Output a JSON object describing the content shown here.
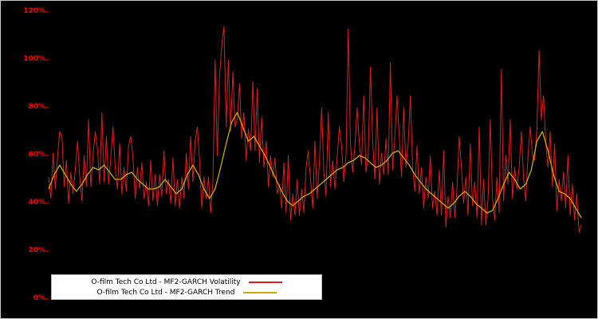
{
  "chart_data": {
    "type": "line",
    "title": "",
    "xlabel": "",
    "ylabel": "",
    "ylim": [
      0,
      120
    ],
    "grid": false,
    "legend_position": "bottom-left",
    "yticks": [
      0,
      20,
      40,
      60,
      80,
      100,
      120
    ],
    "ytick_labels": [
      "0%",
      "20%",
      "40%",
      "60%",
      "80%",
      "100%",
      "120%"
    ],
    "axis_label_color": "#ff0000",
    "background_color": "#000000",
    "series": [
      {
        "name": "O-film Tech Co Ltd - MF2-GARCH Volatility",
        "color": "#dd1c1a",
        "stroke_width": 1,
        "values": [
          51,
          42,
          61,
          46,
          59,
          70,
          68,
          47,
          58,
          40,
          53,
          44,
          54,
          66,
          51,
          41,
          60,
          47,
          75,
          47,
          60,
          70,
          63,
          48,
          78,
          49,
          68,
          48,
          59,
          72,
          55,
          46,
          65,
          44,
          55,
          45,
          64,
          68,
          59,
          42,
          55,
          46,
          57,
          42,
          49,
          39,
          58,
          41,
          52,
          39,
          52,
          43,
          62,
          44,
          50,
          40,
          59,
          39,
          50,
          38,
          51,
          42,
          61,
          46,
          68,
          49,
          66,
          72,
          58,
          38,
          51,
          42,
          51,
          36,
          49,
          100,
          60,
          93,
          106,
          114,
          72,
          100,
          70,
          95,
          72,
          75,
          90,
          67,
          78,
          58,
          71,
          62,
          91,
          62,
          88,
          57,
          76,
          55,
          66,
          47,
          60,
          51,
          59,
          44,
          48,
          38,
          57,
          36,
          60,
          33,
          44,
          35,
          50,
          35,
          46,
          36,
          55,
          62,
          50,
          38,
          66,
          42,
          57,
          80,
          53,
          43,
          78,
          47,
          58,
          46,
          59,
          72,
          64,
          49,
          60,
          113,
          65,
          53,
          64,
          80,
          65,
          56,
          85,
          53,
          60,
          97,
          66,
          50,
          80,
          48,
          61,
          52,
          67,
          52,
          99,
          54,
          68,
          85,
          68,
          51,
          80,
          55,
          65,
          85,
          55,
          45,
          64,
          44,
          55,
          38,
          51,
          42,
          60,
          38,
          45,
          35,
          54,
          35,
          62,
          30,
          43,
          34,
          49,
          34,
          46,
          68,
          55,
          40,
          51,
          35,
          65,
          39,
          49,
          34,
          72,
          31,
          50,
          31,
          42,
          75,
          42,
          33,
          51,
          36,
          96,
          41,
          60,
          48,
          75,
          42,
          55,
          46,
          55,
          70,
          51,
          41,
          60,
          72,
          60,
          58,
          71,
          104,
          75,
          85,
          65,
          55,
          70,
          47,
          65,
          37,
          50,
          41,
          53,
          38,
          60,
          35,
          48,
          33,
          44,
          28,
          31
        ]
      },
      {
        "name": "O-film Tech Co Ltd - MF2-GARCH Trend",
        "color": "#ccaa00",
        "stroke_width": 1.3,
        "values": [
          46,
          52,
          56,
          52,
          48,
          45,
          48,
          52,
          55,
          54,
          56,
          53,
          50,
          50,
          52,
          53,
          50,
          48,
          46,
          46,
          47,
          50,
          47,
          44,
          46,
          52,
          56,
          52,
          46,
          42,
          46,
          55,
          65,
          74,
          78,
          72,
          66,
          68,
          64,
          60,
          55,
          50,
          45,
          41,
          39,
          41,
          43,
          44,
          46,
          48,
          50,
          52,
          54,
          55,
          57,
          58,
          60,
          59,
          57,
          55,
          56,
          58,
          61,
          62,
          59,
          56,
          52,
          49,
          46,
          44,
          42,
          40,
          38,
          40,
          43,
          45,
          43,
          40,
          38,
          36,
          37,
          42,
          48,
          53,
          50,
          46,
          48,
          54,
          66,
          70,
          62,
          52,
          45,
          44,
          42,
          38,
          34
        ]
      }
    ]
  },
  "legend": {
    "items": [
      {
        "label": "O-film Tech Co Ltd - MF2-GARCH Volatility",
        "color": "#dd1c1a"
      },
      {
        "label": "O-film Tech Co Ltd - MF2-GARCH Trend",
        "color": "#ccaa00"
      }
    ]
  }
}
